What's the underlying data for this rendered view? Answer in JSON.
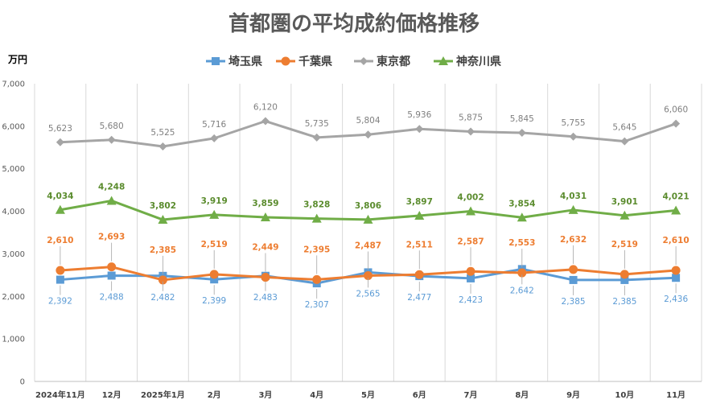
{
  "chart_data": {
    "type": "line",
    "title": "首都圏の平均成約価格推移",
    "ylabel": "万円",
    "xlabel": "",
    "ylim": [
      0,
      7000
    ],
    "yticks": [
      0,
      1000,
      2000,
      3000,
      4000,
      5000,
      6000,
      7000
    ],
    "ytick_labels": [
      "0",
      "1,000",
      "2,000",
      "3,000",
      "4,000",
      "5,000",
      "6,000",
      "7,000"
    ],
    "categories": [
      "2024年11月",
      "12月",
      "2025年1月",
      "2月",
      "3月",
      "4月",
      "5月",
      "6月",
      "7月",
      "8月",
      "9月",
      "10月",
      "11月"
    ],
    "legend_position": "top-center",
    "grid": "vertical",
    "series": [
      {
        "name": "埼玉県",
        "color": "#5b9bd5",
        "marker": "square",
        "values": [
          2392,
          2488,
          2482,
          2399,
          2483,
          2307,
          2565,
          2477,
          2423,
          2642,
          2385,
          2385,
          2436
        ],
        "labels": [
          "2,392",
          "2,488",
          "2,482",
          "2,399",
          "2,483",
          "2,307",
          "2,565",
          "2,477",
          "2,423",
          "2,642",
          "2,385",
          "2,385",
          "2,436"
        ]
      },
      {
        "name": "千葉県",
        "color": "#ed7d31",
        "marker": "circle",
        "values": [
          2610,
          2693,
          2385,
          2519,
          2449,
          2395,
          2487,
          2511,
          2587,
          2553,
          2632,
          2519,
          2610
        ],
        "labels": [
          "2,610",
          "2,693",
          "2,385",
          "2,519",
          "2,449",
          "2,395",
          "2,487",
          "2,511",
          "2,587",
          "2,553",
          "2,632",
          "2,519",
          "2,610"
        ]
      },
      {
        "name": "東京都",
        "color": "#a5a5a5",
        "marker": "diamond",
        "values": [
          5623,
          5680,
          5525,
          5716,
          6120,
          5735,
          5804,
          5936,
          5875,
          5845,
          5755,
          5645,
          6060
        ],
        "labels": [
          "5,623",
          "5,680",
          "5,525",
          "5,716",
          "6,120",
          "5,735",
          "5,804",
          "5,936",
          "5,875",
          "5,845",
          "5,755",
          "5,645",
          "6,060"
        ]
      },
      {
        "name": "神奈川県",
        "color": "#70ad47",
        "marker": "triangle",
        "values": [
          4034,
          4248,
          3802,
          3919,
          3859,
          3828,
          3806,
          3897,
          4002,
          3854,
          4031,
          3901,
          4021
        ],
        "labels": [
          "4,034",
          "4,248",
          "3,802",
          "3,919",
          "3,859",
          "3,828",
          "3,806",
          "3,897",
          "4,002",
          "3,854",
          "4,031",
          "3,901",
          "4,021"
        ]
      }
    ]
  }
}
